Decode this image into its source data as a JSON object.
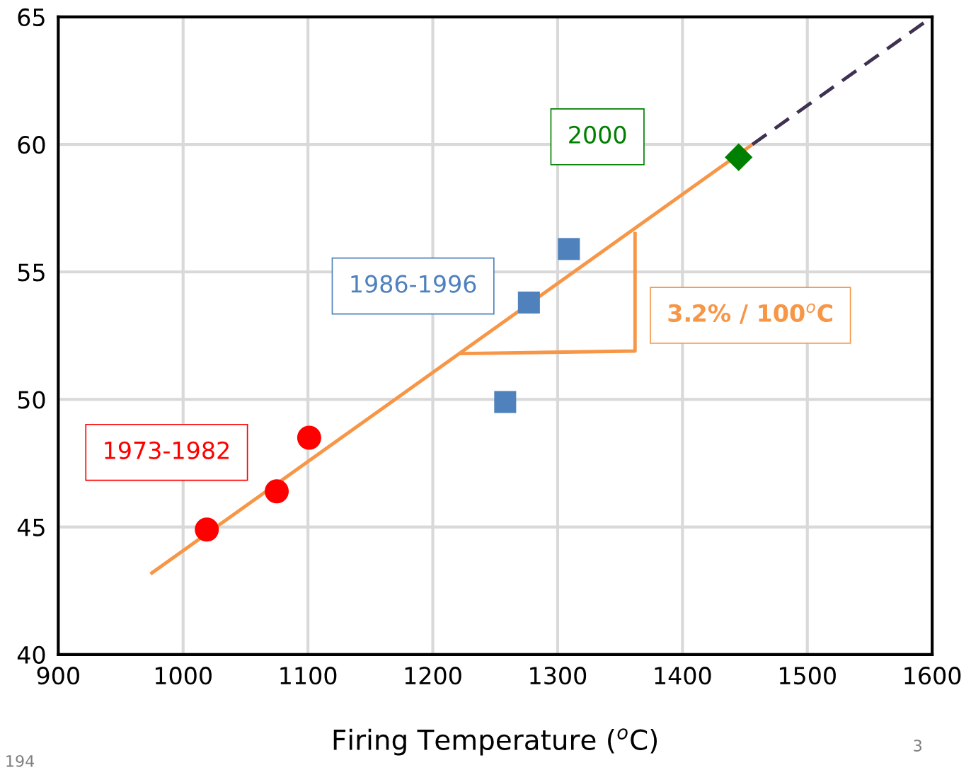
{
  "chart_data": {
    "type": "scatter",
    "xlabel": "Firing Temperature ($^{o}$C)",
    "xlim": [
      900,
      1600
    ],
    "xticks": [
      900,
      1000,
      1100,
      1200,
      1300,
      1400,
      1500,
      1600
    ],
    "ylim": [
      40,
      65
    ],
    "yticks": [
      40,
      45,
      50,
      55,
      60,
      65
    ],
    "grid": true,
    "series": [
      {
        "marker": "circle",
        "color": "#ff0000",
        "x": [
          1019,
          1075,
          1101
        ],
        "values": [
          44.9,
          46.4,
          48.5
        ]
      },
      {
        "marker": "square",
        "color": "#4f81bd",
        "x": [
          1258,
          1277,
          1309
        ],
        "values": [
          49.9,
          53.8,
          55.9
        ]
      },
      {
        "marker": "diamond",
        "color": "#008000",
        "x": [
          1445
        ],
        "values": [
          59.5
        ]
      },
      {
        "type": "line",
        "line_style": "solid",
        "color": "#f79646",
        "x": [
          975,
          1456
        ],
        "values": [
          43.2,
          60.0
        ]
      },
      {
        "type": "line",
        "line_style": "dashed",
        "color": "#3f3151",
        "x": [
          1456,
          1600
        ],
        "values": [
          60.0,
          65.0
        ]
      },
      {
        "type": "line",
        "line_style": "solid",
        "color": "#f79646",
        "x": [
          1223,
          1362,
          1362
        ],
        "values": [
          51.8,
          51.9,
          56.5
        ]
      }
    ],
    "annotations": [
      "1973-1982",
      "1986-1996",
      "2000",
      "3.2% / 100$^{o}$C",
      "3",
      "194"
    ]
  }
}
